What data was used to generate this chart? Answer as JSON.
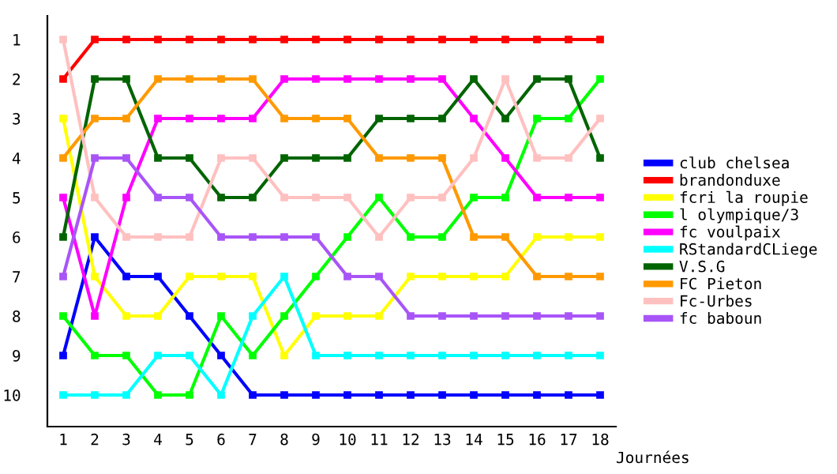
{
  "chart_data": {
    "type": "line",
    "xlabel": "Journées",
    "x": [
      1,
      2,
      3,
      4,
      5,
      6,
      7,
      8,
      9,
      10,
      11,
      12,
      13,
      14,
      15,
      16,
      17,
      18
    ],
    "xlim": [
      0.5,
      18.5
    ],
    "xticks": [
      1,
      2,
      3,
      4,
      5,
      6,
      7,
      8,
      9,
      10,
      11,
      12,
      13,
      14,
      15,
      16,
      17,
      18
    ],
    "ylim": [
      10.8,
      0.4
    ],
    "yticks": [
      1,
      2,
      3,
      4,
      5,
      6,
      7,
      8,
      9,
      10
    ],
    "grid": false,
    "legend": "right",
    "marker": "square",
    "line_style": "solid",
    "series": [
      {
        "name": "club chelsea",
        "color": "#0000ff",
        "values": [
          9,
          6,
          7,
          7,
          8,
          9,
          10,
          10,
          10,
          10,
          10,
          10,
          10,
          10,
          10,
          10,
          10,
          10
        ]
      },
      {
        "name": "brandonduxe",
        "color": "#ff0000",
        "values": [
          2,
          1,
          1,
          1,
          1,
          1,
          1,
          1,
          1,
          1,
          1,
          1,
          1,
          1,
          1,
          1,
          1,
          1
        ]
      },
      {
        "name": "fcri la roupie",
        "color": "#ffff00",
        "values": [
          3,
          7,
          8,
          8,
          7,
          7,
          7,
          9,
          8,
          8,
          8,
          7,
          7,
          7,
          7,
          6,
          6,
          6
        ]
      },
      {
        "name": "l olympique/3",
        "color": "#00ff00",
        "values": [
          8,
          9,
          9,
          10,
          10,
          8,
          9,
          8,
          7,
          6,
          5,
          6,
          6,
          5,
          5,
          3,
          3,
          2
        ]
      },
      {
        "name": "fc voulpaix",
        "color": "#ff00ff",
        "values": [
          5,
          8,
          5,
          3,
          3,
          3,
          3,
          2,
          2,
          2,
          2,
          2,
          2,
          3,
          4,
          5,
          5,
          5
        ]
      },
      {
        "name": "RStandardCLiege",
        "color": "#00ffff",
        "values": [
          10,
          10,
          10,
          9,
          9,
          10,
          8,
          7,
          9,
          9,
          9,
          9,
          9,
          9,
          9,
          9,
          9,
          9
        ]
      },
      {
        "name": "V.S.G",
        "color": "#006400",
        "values": [
          6,
          2,
          2,
          4,
          4,
          5,
          5,
          4,
          4,
          4,
          3,
          3,
          3,
          2,
          3,
          2,
          2,
          4
        ]
      },
      {
        "name": "FC Pieton",
        "color": "#ff9900",
        "values": [
          4,
          3,
          3,
          2,
          2,
          2,
          2,
          3,
          3,
          3,
          4,
          4,
          4,
          6,
          6,
          7,
          7,
          7
        ]
      },
      {
        "name": "Fc-Urbes",
        "color": "#ffc0c0",
        "values": [
          1,
          5,
          6,
          6,
          6,
          4,
          4,
          5,
          5,
          5,
          6,
          5,
          5,
          4,
          2,
          4,
          4,
          3
        ]
      },
      {
        "name": "fc baboun",
        "color": "#a855f7",
        "values": [
          7,
          4,
          4,
          5,
          5,
          6,
          6,
          6,
          6,
          7,
          7,
          8,
          8,
          8,
          8,
          8,
          8,
          8
        ]
      }
    ]
  }
}
